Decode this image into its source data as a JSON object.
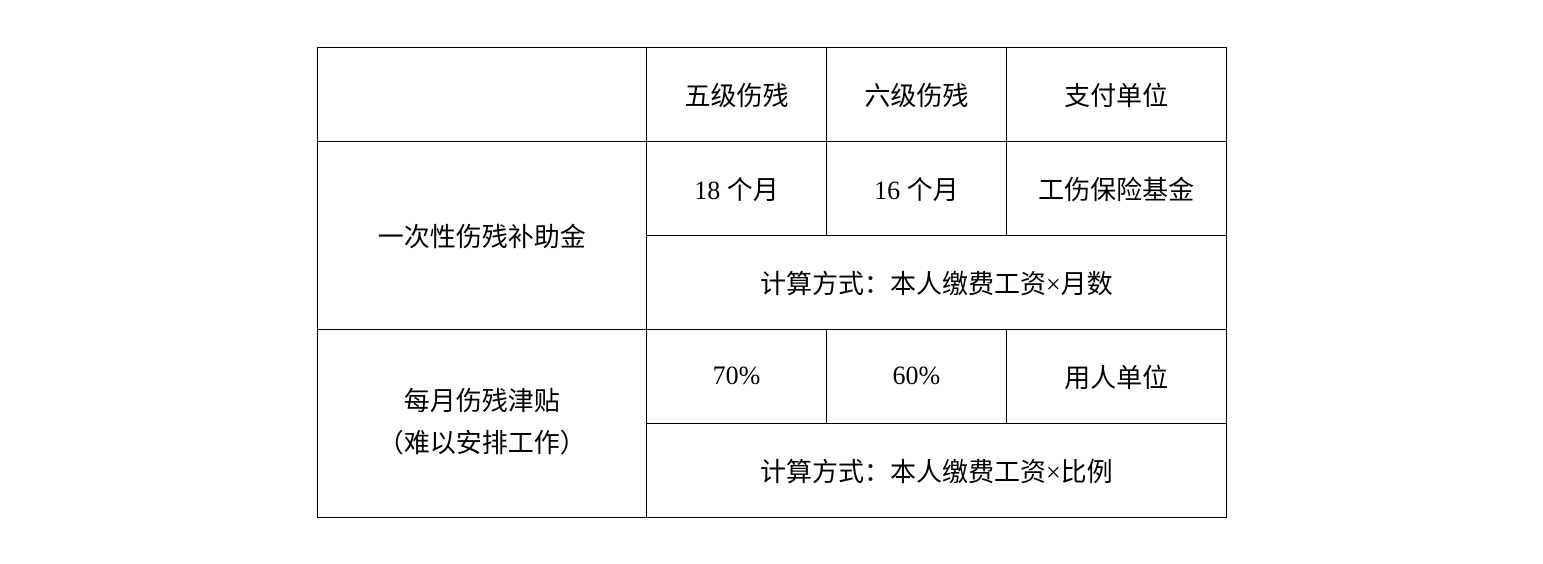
{
  "table": {
    "type": "table",
    "background_color": "#ffffff",
    "border_color": "#000000",
    "text_color": "#000000",
    "font_size": 26,
    "columns": {
      "label_width": 330,
      "data_width": 180,
      "payer_width": 220
    },
    "headers": {
      "empty": "",
      "col1": "五级伤残",
      "col2": "六级伤残",
      "col3": "支付单位"
    },
    "rows": [
      {
        "label": "一次性伤残补助金",
        "col1": "18 个月",
        "col2": "16 个月",
        "payer": "工伤保险基金",
        "calc": "计算方式：本人缴费工资×月数"
      },
      {
        "label_line1": "每月伤残津贴",
        "label_line2": "（难以安排工作）",
        "col1": "70%",
        "col2": "60%",
        "payer": "用人单位",
        "calc": "计算方式：本人缴费工资×比例"
      }
    ]
  }
}
